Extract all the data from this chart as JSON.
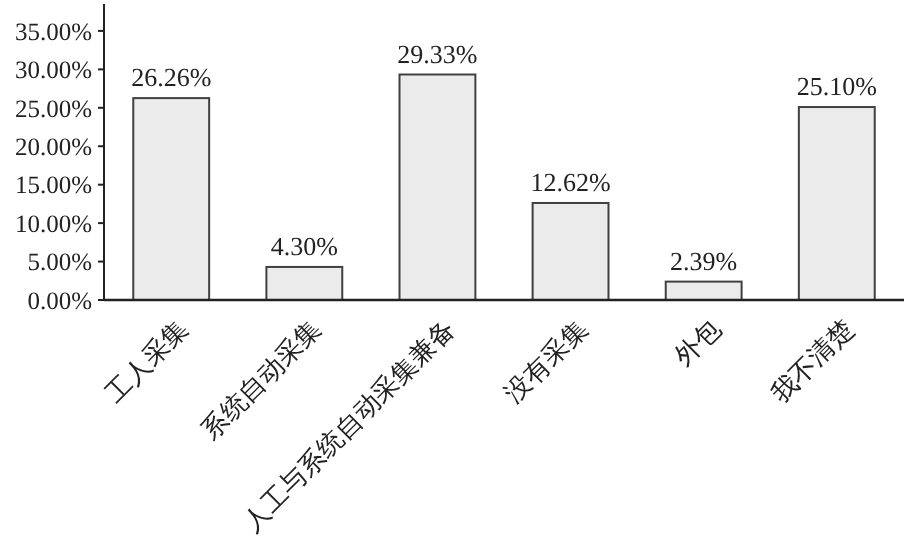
{
  "chart_data": {
    "type": "bar",
    "categories": [
      "工人采集",
      "系统自动采集",
      "人工与系统自动采集兼备",
      "没有采集",
      "外包",
      "我不清楚"
    ],
    "values": [
      26.26,
      4.3,
      29.33,
      12.62,
      2.39,
      25.1
    ],
    "value_labels": [
      "26.26%",
      "4.30%",
      "29.33%",
      "12.62%",
      "2.39%",
      "25.10%"
    ],
    "color": "#ebebeb",
    "ylim": [
      0,
      38.5
    ],
    "yticks": [
      {
        "value": 0,
        "label": "0.00%"
      },
      {
        "value": 5,
        "label": "5.00%"
      },
      {
        "value": 10,
        "label": "10.00%"
      },
      {
        "value": 15,
        "label": "15.00%"
      },
      {
        "value": 20,
        "label": "20.00%"
      },
      {
        "value": 25,
        "label": "25.00%"
      },
      {
        "value": 30,
        "label": "30.00%"
      },
      {
        "value": 35,
        "label": "35.00%"
      }
    ],
    "grid": false
  }
}
